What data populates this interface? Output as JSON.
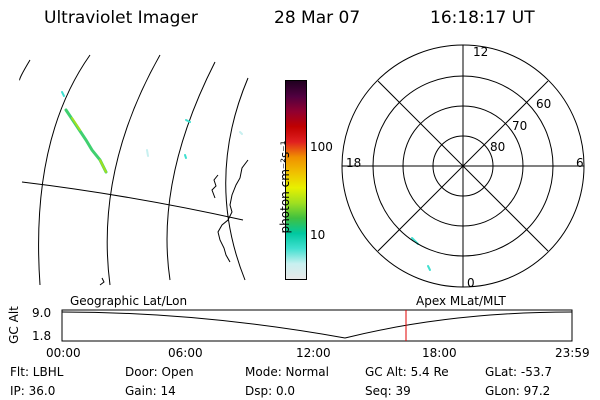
{
  "header": {
    "instrument": "Ultraviolet Imager",
    "date": "28 Mar 07",
    "time": "16:18:17 UT"
  },
  "colorbar": {
    "unit_label": "photon cm⁻²s⁻¹",
    "ticks": [
      "100",
      "10"
    ],
    "colors": [
      "#e8e8e8",
      "#c8f0f0",
      "#40e0d0",
      "#00c8a0",
      "#40c040",
      "#a0e020",
      "#e8f000",
      "#f0c000",
      "#f09000",
      "#e02020",
      "#c00000",
      "#900030",
      "#500040",
      "#200020"
    ]
  },
  "polar": {
    "mlt_labels": {
      "top": "12",
      "left": "18",
      "right": "6",
      "bottom": "0"
    },
    "lat_labels": [
      "60",
      "70",
      "80"
    ]
  },
  "timeline": {
    "axis_label": "GC Alt",
    "ymax": "9.0",
    "ymin": "1.8",
    "left_title": "Geographic Lat/Lon",
    "right_title": "Apex MLat/MLT",
    "time_ticks": [
      "00:00",
      "06:00",
      "12:00",
      "18:00",
      "23:59"
    ],
    "current_marker_color": "#e00000"
  },
  "info": {
    "flt": "Flt: LBHL",
    "door": "Door: Open",
    "mode": "Mode: Normal",
    "gcalt": "GC Alt: 5.4 Re",
    "glat": "GLat: -53.7",
    "ip": "IP: 36.0",
    "gain": "Gain: 14",
    "dsp": "Dsp:    0.0",
    "seq": "Seq: 39",
    "glon": "GLon:  97.2"
  }
}
